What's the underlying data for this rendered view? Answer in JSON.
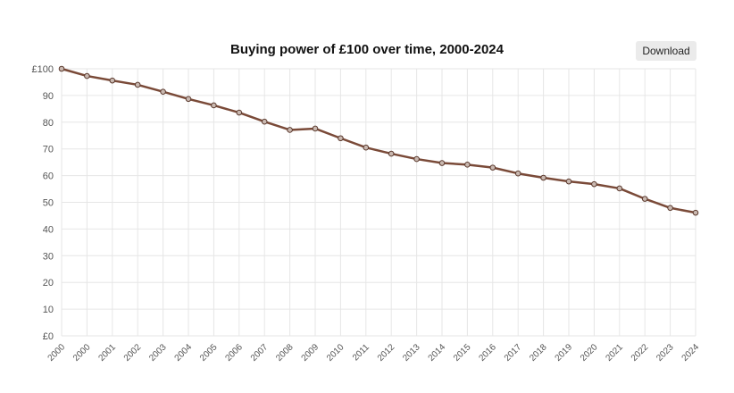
{
  "chart_data": {
    "type": "line",
    "title": "Buying power of £100 over time, 2000-2024",
    "xlabel": "",
    "ylabel": "",
    "x_tick_labels": [
      "2000",
      "2000",
      "2001",
      "2002",
      "2003",
      "2004",
      "2005",
      "2006",
      "2007",
      "2008",
      "2009",
      "2010",
      "2011",
      "2012",
      "2013",
      "2014",
      "2015",
      "2016",
      "2017",
      "2018",
      "2019",
      "2020",
      "2021",
      "2022",
      "2023",
      "2024"
    ],
    "y_tick_labels": [
      "£0",
      "10",
      "20",
      "30",
      "40",
      "50",
      "60",
      "70",
      "80",
      "90",
      "£100"
    ],
    "ylim": [
      0,
      100
    ],
    "grid": true,
    "series": [
      {
        "color": "#7a4a38",
        "values": [
          100,
          97.3,
          95.6,
          94.0,
          91.4,
          88.7,
          86.3,
          83.6,
          80.2,
          77.1,
          77.6,
          74.0,
          70.5,
          68.2,
          66.2,
          64.7,
          64.1,
          63.0,
          60.8,
          59.2,
          57.8,
          56.8,
          55.2,
          51.3,
          47.9,
          46.1
        ]
      }
    ]
  },
  "toolbar": {
    "download_label": "Download"
  }
}
